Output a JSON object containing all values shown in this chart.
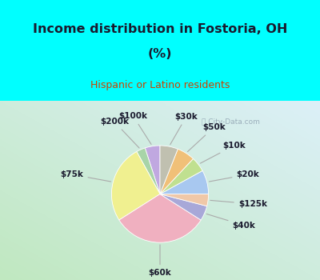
{
  "title_line1": "Income distribution in Fostoria, OH",
  "title_line2": "(%)",
  "subtitle": "Hispanic or Latino residents",
  "labels": [
    "$100k",
    "$200k",
    "$75k",
    "$60k",
    "$40k",
    "$125k",
    "$20k",
    "$10k",
    "$50k",
    "$30k"
  ],
  "values": [
    5,
    3,
    26,
    32,
    5,
    4,
    8,
    5,
    6,
    6
  ],
  "colors": [
    "#c0a8e0",
    "#a8d4a8",
    "#f0f090",
    "#f0b0c0",
    "#a8a8d8",
    "#f0c8a8",
    "#a8c8f0",
    "#c0e090",
    "#f0c078",
    "#c0c0b0"
  ],
  "bg_color": "#00ffff",
  "watermark": "City-Data.com",
  "startangle": 90,
  "label_fontsize": 7.5,
  "label_color": "#1a1a2e",
  "title_color": "#1a1a2e",
  "subtitle_color": "#cc4400"
}
